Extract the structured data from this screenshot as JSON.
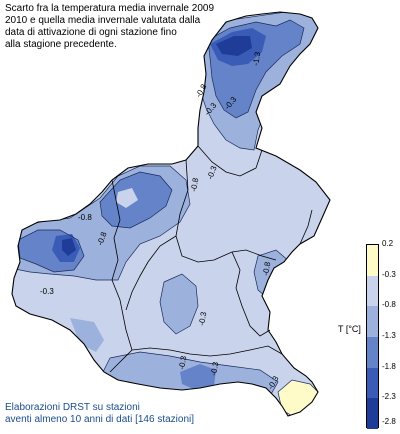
{
  "title": {
    "lines": [
      "Scarto fra la temperatura media invernale 2009",
      "2010 e quella media invernale valutata dalla",
      "data di attivazione di ogni stazione fino",
      "alla stagione precedente."
    ]
  },
  "map": {
    "region": "Veneto",
    "contour_labels": [
      "-1.3",
      "-0.8",
      "-0.3",
      "-0.3",
      "-0.8",
      "-0.3",
      "-0.8",
      "-0.3",
      "-0.8",
      "-0.3",
      "-0.3",
      "-0.3",
      "-0.8",
      "-0.3"
    ]
  },
  "legend": {
    "title": "T [°C]",
    "ticks": [
      "0.2",
      "-0.3",
      "-0.8",
      "-1.3",
      "-1.8",
      "-2.3",
      "-2.8"
    ],
    "classes": [
      {
        "from": -0.3,
        "to": 0.2,
        "color": "#fefbc8"
      },
      {
        "from": -0.8,
        "to": -0.3,
        "color": "#c9d4ec"
      },
      {
        "from": -1.3,
        "to": -0.8,
        "color": "#9cb1dc"
      },
      {
        "from": -1.8,
        "to": -1.3,
        "color": "#6583c9"
      },
      {
        "from": -2.3,
        "to": -1.8,
        "color": "#3a5cb6"
      },
      {
        "from": -2.8,
        "to": -2.3,
        "color": "#1e3c98"
      }
    ]
  },
  "footer": {
    "lines": [
      "Elaborazioni DRST su stazioni",
      "aventi almeno 10 anni di dati [146 stazioni]"
    ]
  }
}
